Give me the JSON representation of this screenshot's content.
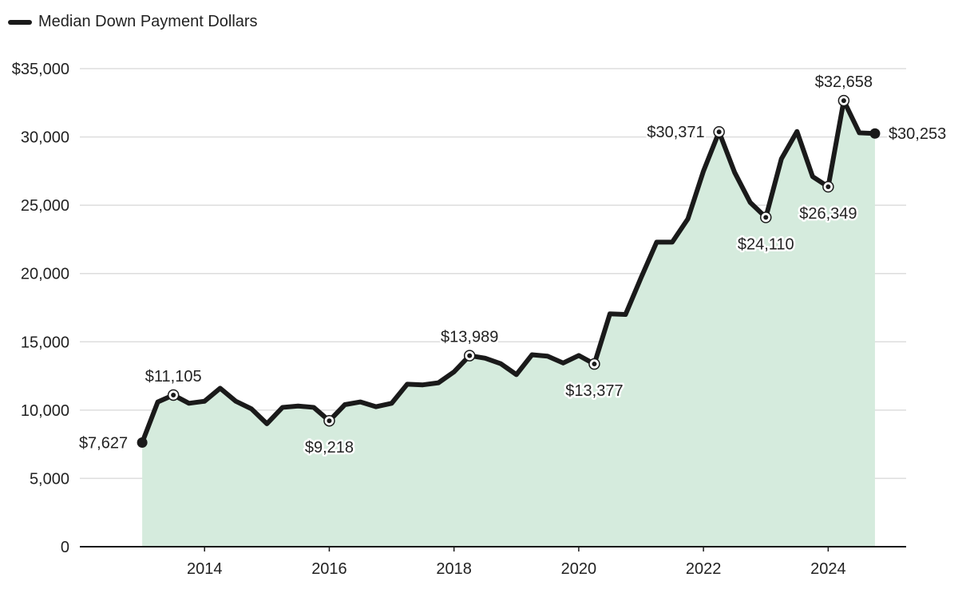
{
  "chart_data": {
    "type": "area",
    "title": "",
    "legend": {
      "label": "Median Down Payment Dollars",
      "position": "top-left"
    },
    "colors": {
      "line": "#1a1a1a",
      "fill": "#d5ebdd",
      "grid": "#dddddd",
      "axis": "#1a1a1a",
      "text": "#222222"
    },
    "ylim": [
      0,
      35000
    ],
    "xlim": [
      2012.0,
      2025.25
    ],
    "y_ticks": [
      {
        "value": 0,
        "label": "0"
      },
      {
        "value": 5000,
        "label": "5,000"
      },
      {
        "value": 10000,
        "label": "10,000"
      },
      {
        "value": 15000,
        "label": "15,000"
      },
      {
        "value": 20000,
        "label": "20,000"
      },
      {
        "value": 25000,
        "label": "25,000"
      },
      {
        "value": 30000,
        "label": "30,000"
      },
      {
        "value": 35000,
        "label": "$35,000"
      }
    ],
    "x_ticks": [
      {
        "value": 2014,
        "label": "2014"
      },
      {
        "value": 2016,
        "label": "2016"
      },
      {
        "value": 2018,
        "label": "2018"
      },
      {
        "value": 2020,
        "label": "2020"
      },
      {
        "value": 2022,
        "label": "2022"
      },
      {
        "value": 2024,
        "label": "2024"
      }
    ],
    "series": [
      {
        "name": "Median Down Payment Dollars",
        "x": [
          2013.0,
          2013.25,
          2013.5,
          2013.75,
          2014.0,
          2014.25,
          2014.5,
          2014.75,
          2015.0,
          2015.25,
          2015.5,
          2015.75,
          2016.0,
          2016.25,
          2016.5,
          2016.75,
          2017.0,
          2017.25,
          2017.5,
          2017.75,
          2018.0,
          2018.25,
          2018.5,
          2018.75,
          2019.0,
          2019.25,
          2019.5,
          2019.75,
          2020.0,
          2020.25,
          2020.5,
          2020.75,
          2021.0,
          2021.25,
          2021.5,
          2021.75,
          2022.0,
          2022.25,
          2022.5,
          2022.75,
          2023.0,
          2023.25,
          2023.5,
          2023.75,
          2024.0,
          2024.25,
          2024.5,
          2024.75
        ],
        "values": [
          7627,
          10600,
          11105,
          10500,
          10650,
          11600,
          10650,
          10100,
          9000,
          10200,
          10300,
          10200,
          9218,
          10400,
          10600,
          10250,
          10500,
          11900,
          11850,
          12000,
          12800,
          13989,
          13800,
          13400,
          12600,
          14050,
          13950,
          13450,
          14000,
          13377,
          17050,
          17000,
          19700,
          22300,
          22300,
          24000,
          27500,
          30371,
          27400,
          25200,
          24110,
          28400,
          30400,
          27100,
          26349,
          32658,
          30300,
          30253
        ]
      }
    ],
    "annotations": [
      {
        "x": 2013.0,
        "value": 7627,
        "label": "$7,627",
        "marker": "filled",
        "placement": "left"
      },
      {
        "x": 2013.5,
        "value": 11105,
        "label": "$11,105",
        "marker": "ring",
        "placement": "above"
      },
      {
        "x": 2016.0,
        "value": 9218,
        "label": "$9,218",
        "marker": "ring",
        "placement": "below"
      },
      {
        "x": 2018.25,
        "value": 13989,
        "label": "$13,989",
        "marker": "ring",
        "placement": "above"
      },
      {
        "x": 2020.25,
        "value": 13377,
        "label": "$13,377",
        "marker": "ring",
        "placement": "below"
      },
      {
        "x": 2022.25,
        "value": 30371,
        "label": "$30,371",
        "marker": "ring",
        "placement": "left"
      },
      {
        "x": 2023.0,
        "value": 24110,
        "label": "$24,110",
        "marker": "ring",
        "placement": "below"
      },
      {
        "x": 2024.0,
        "value": 26349,
        "label": "$26,349",
        "marker": "ring",
        "placement": "below"
      },
      {
        "x": 2024.25,
        "value": 32658,
        "label": "$32,658",
        "marker": "ring",
        "placement": "above"
      },
      {
        "x": 2024.75,
        "value": 30253,
        "label": "$30,253",
        "marker": "filled",
        "placement": "right"
      }
    ]
  }
}
